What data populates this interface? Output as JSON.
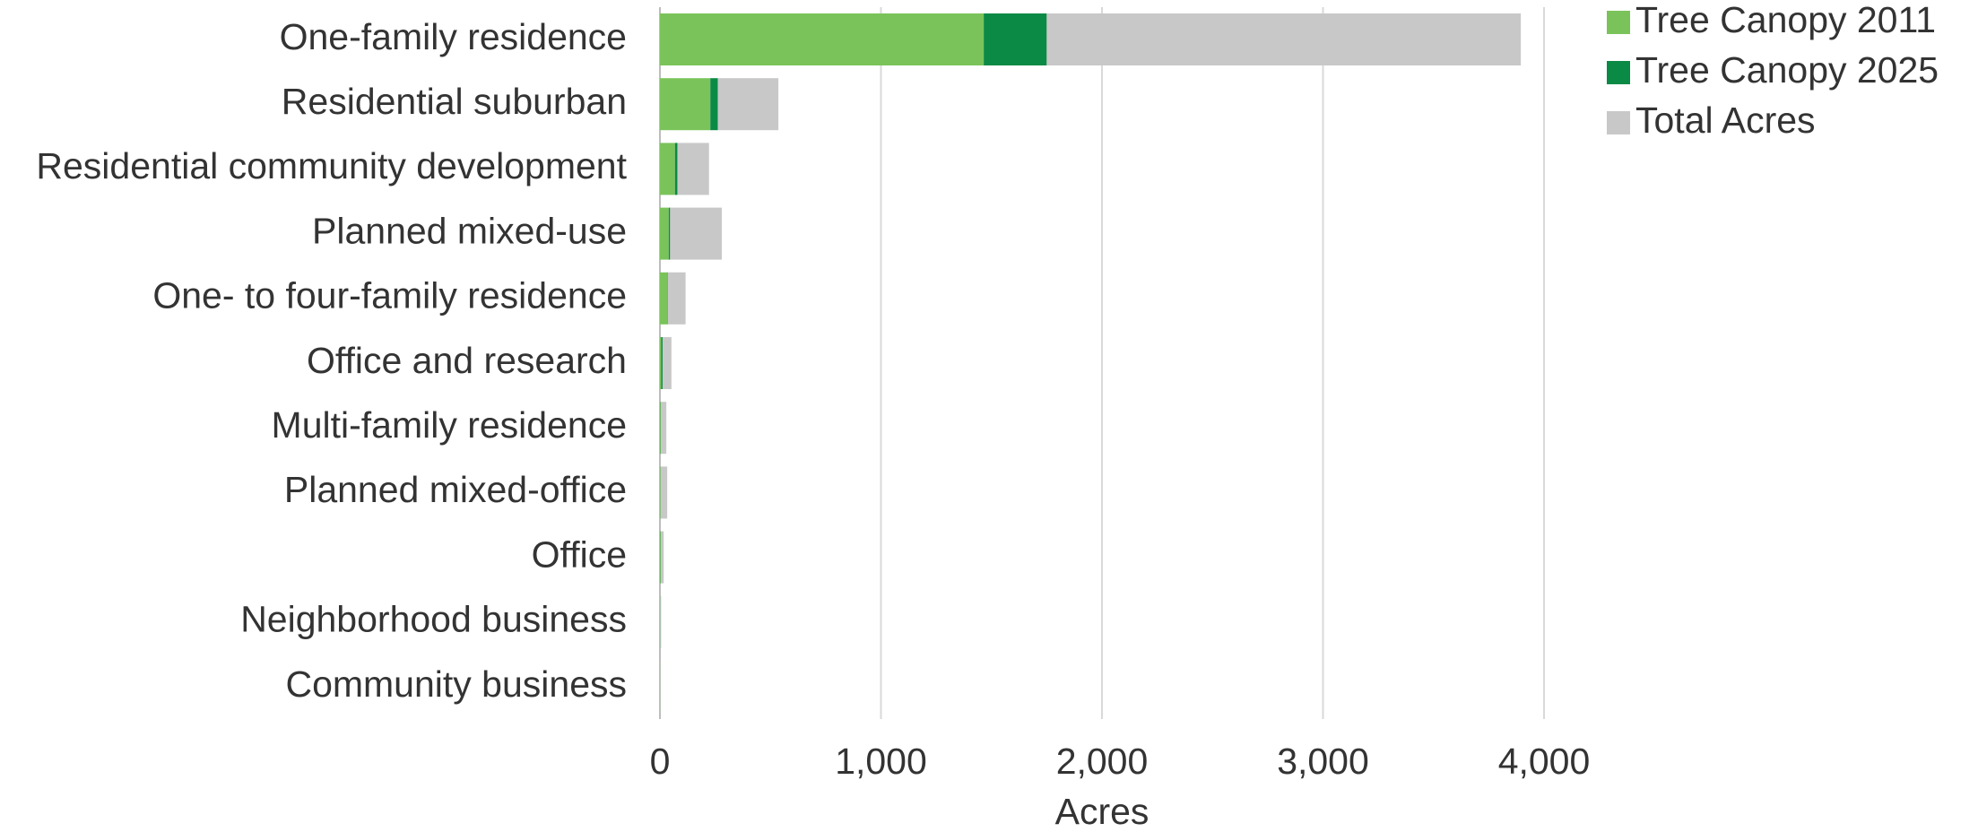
{
  "chart_data": {
    "type": "stacked-bar-horizontal",
    "x_label": "Acres",
    "categories": [
      "One-family residence",
      "Residential suburban",
      "Residential community development",
      "Planned mixed-use",
      "One- to four-family residence",
      "Office and research",
      "Multi-family residence",
      "Planned mixed-office",
      "Office",
      "Neighborhood business",
      "Community business"
    ],
    "series": [
      {
        "name": "Tree Canopy 2011",
        "color": "#7ac35a",
        "values": [
          1465,
          228,
          68,
          40,
          34,
          6,
          3,
          2,
          3,
          1,
          1
        ]
      },
      {
        "name": "Tree Canopy 2025",
        "color": "#0b8a45",
        "values": [
          285,
          34,
          11,
          6,
          2,
          6,
          1,
          1,
          1,
          0.5,
          0
        ]
      },
      {
        "name": "Total Acres",
        "color": "#c8c8c8",
        "values": [
          2145,
          274,
          143,
          234,
          80,
          40,
          25,
          30,
          13,
          4,
          2
        ]
      }
    ],
    "xlim": [
      0,
      4000
    ],
    "xticks": [
      0,
      {
        "value": 1000,
        "label": "1,000"
      },
      {
        "value": 2000,
        "label": "2,000"
      },
      {
        "value": 3000,
        "label": "3,000"
      },
      {
        "value": 4000,
        "label": "4,000"
      }
    ],
    "grid": true,
    "legend": "top-right"
  }
}
